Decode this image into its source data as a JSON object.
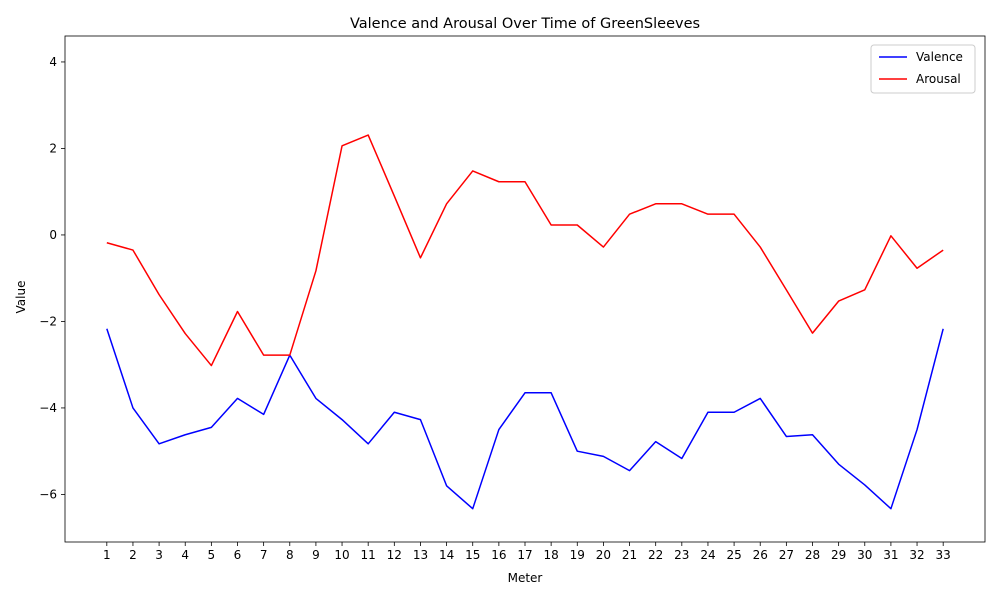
{
  "chart_data": {
    "type": "line",
    "title": "Valence and Arousal Over Time of GreenSleeves",
    "xlabel": "Meter",
    "ylabel": "Value",
    "x": [
      1,
      2,
      3,
      4,
      5,
      6,
      7,
      8,
      9,
      10,
      11,
      12,
      13,
      14,
      15,
      16,
      17,
      18,
      19,
      20,
      21,
      22,
      23,
      24,
      25,
      26,
      27,
      28,
      29,
      30,
      31,
      32,
      33
    ],
    "ylim": [
      -7.1,
      4.6
    ],
    "yticks": [
      -6,
      -4,
      -2,
      0,
      2,
      4
    ],
    "grid": false,
    "legend_position": "top-right",
    "series": [
      {
        "name": "Valence",
        "color": "#0000ff",
        "values": [
          -2.17,
          -4.0,
          -4.83,
          -4.62,
          -4.45,
          -3.78,
          -4.15,
          -2.78,
          -3.78,
          -4.27,
          -4.83,
          -4.1,
          -4.27,
          -5.8,
          -6.33,
          -4.5,
          -3.65,
          -3.65,
          -5.0,
          -5.12,
          -5.45,
          -4.78,
          -5.17,
          -4.1,
          -4.1,
          -3.78,
          -4.66,
          -4.62,
          -5.3,
          -5.78,
          -6.33,
          -4.5,
          -2.17
        ]
      },
      {
        "name": "Arousal",
        "color": "#ff0000",
        "values": [
          -0.18,
          -0.35,
          -1.38,
          -2.28,
          -3.02,
          -1.77,
          -2.78,
          -2.78,
          -0.83,
          2.06,
          2.31,
          0.9,
          -0.53,
          0.72,
          1.48,
          1.23,
          1.23,
          0.23,
          0.23,
          -0.28,
          0.48,
          0.72,
          0.72,
          0.48,
          0.48,
          -0.28,
          -1.27,
          -2.27,
          -1.53,
          -1.27,
          -0.02,
          -0.77,
          -0.35
        ]
      }
    ]
  }
}
